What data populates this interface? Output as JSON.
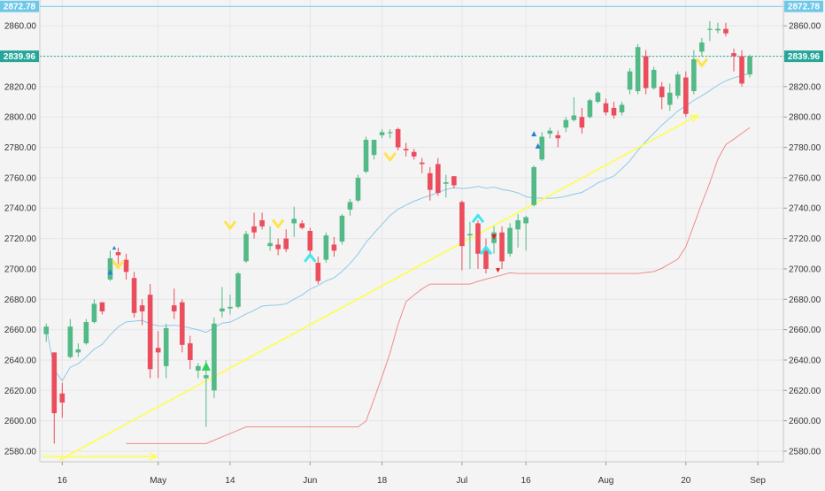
{
  "theme": {
    "background": "#f4f4f4",
    "grid": "#e6e6ea",
    "up_color": "#53b987",
    "down_color": "#eb4d5c",
    "ma_fast_color": "#8fc9e6",
    "ma_slow_color": "#f08c8c",
    "trendline_color": "#ffff40",
    "resistance_color": "#6fc8e8",
    "last_price_color": "#26a69a",
    "marker_yellow": "#ffe34d",
    "marker_cyan": "#3fe8f0",
    "marker_green": "#2fd35a",
    "marker_blue": "#2a7fd4",
    "marker_red": "#e02020"
  },
  "chart_data": {
    "type": "candlestick",
    "y_axis": {
      "ticks": [
        "2580.00",
        "2600.00",
        "2620.00",
        "2640.00",
        "2660.00",
        "2680.00",
        "2700.00",
        "2720.00",
        "2740.00",
        "2760.00",
        "2780.00",
        "2800.00",
        "2820.00",
        "2840.00",
        "2860.00"
      ],
      "range": [
        2573,
        2877
      ]
    },
    "x_axis": {
      "ticks": [
        {
          "label": "16",
          "index": 2
        },
        {
          "label": "May",
          "index": 14
        },
        {
          "label": "14",
          "index": 23
        },
        {
          "label": "Jun",
          "index": 33
        },
        {
          "label": "18",
          "index": 42
        },
        {
          "label": "Jul",
          "index": 52
        },
        {
          "label": "16",
          "index": 60
        },
        {
          "label": "Aug",
          "index": 70
        },
        {
          "label": "20",
          "index": 80
        },
        {
          "label": "Sep",
          "index": 89
        }
      ],
      "index_range": [
        -0.8,
        92.2
      ]
    },
    "price_levels": [
      {
        "name": "resistance",
        "value": 2872.78,
        "label": "2872.78"
      },
      {
        "name": "last-price",
        "value": 2839.96,
        "label": "2839.96"
      }
    ],
    "candles": [
      {
        "o": 2657,
        "h": 2664,
        "l": 2652,
        "c": 2662
      },
      {
        "o": 2645,
        "h": 2645,
        "l": 2585,
        "c": 2605
      },
      {
        "o": 2618,
        "h": 2625,
        "l": 2602,
        "c": 2612
      },
      {
        "o": 2642,
        "h": 2667,
        "l": 2641,
        "c": 2662
      },
      {
        "o": 2645,
        "h": 2651,
        "l": 2642,
        "c": 2647
      },
      {
        "o": 2651,
        "h": 2667,
        "l": 2650,
        "c": 2665
      },
      {
        "o": 2665,
        "h": 2680,
        "l": 2664,
        "c": 2677
      },
      {
        "o": 2678,
        "h": 2678,
        "l": 2670,
        "c": 2672
      },
      {
        "o": 2693,
        "h": 2712,
        "l": 2692,
        "c": 2707
      },
      {
        "o": 2711,
        "h": 2714,
        "l": 2703,
        "c": 2709
      },
      {
        "o": 2706,
        "h": 2710,
        "l": 2693,
        "c": 2698
      },
      {
        "o": 2694,
        "h": 2698,
        "l": 2668,
        "c": 2671
      },
      {
        "o": 2676,
        "h": 2680,
        "l": 2663,
        "c": 2672
      },
      {
        "o": 2683,
        "h": 2690,
        "l": 2628,
        "c": 2634
      },
      {
        "o": 2648,
        "h": 2659,
        "l": 2628,
        "c": 2645
      },
      {
        "o": 2636,
        "h": 2664,
        "l": 2628,
        "c": 2661
      },
      {
        "o": 2676,
        "h": 2687,
        "l": 2667,
        "c": 2672
      },
      {
        "o": 2678,
        "h": 2680,
        "l": 2645,
        "c": 2650
      },
      {
        "o": 2651,
        "h": 2656,
        "l": 2634,
        "c": 2640
      },
      {
        "o": 2633,
        "h": 2638,
        "l": 2628,
        "c": 2636
      },
      {
        "o": 2628,
        "h": 2640,
        "l": 2596,
        "c": 2630
      },
      {
        "o": 2620,
        "h": 2668,
        "l": 2615,
        "c": 2664
      },
      {
        "o": 2672,
        "h": 2688,
        "l": 2668,
        "c": 2674
      },
      {
        "o": 2674,
        "h": 2683,
        "l": 2670,
        "c": 2675
      },
      {
        "o": 2675,
        "h": 2698,
        "l": 2674,
        "c": 2697
      },
      {
        "o": 2705,
        "h": 2725,
        "l": 2704,
        "c": 2723
      },
      {
        "o": 2728,
        "h": 2737,
        "l": 2720,
        "c": 2724
      },
      {
        "o": 2732,
        "h": 2737,
        "l": 2726,
        "c": 2728
      },
      {
        "o": 2715,
        "h": 2728,
        "l": 2712,
        "c": 2717
      },
      {
        "o": 2716,
        "h": 2720,
        "l": 2709,
        "c": 2713
      },
      {
        "o": 2720,
        "h": 2726,
        "l": 2711,
        "c": 2713
      },
      {
        "o": 2730,
        "h": 2741,
        "l": 2721,
        "c": 2733
      },
      {
        "o": 2730,
        "h": 2732,
        "l": 2726,
        "c": 2727
      },
      {
        "o": 2725,
        "h": 2727,
        "l": 2709,
        "c": 2712
      },
      {
        "o": 2704,
        "h": 2708,
        "l": 2690,
        "c": 2692
      },
      {
        "o": 2706,
        "h": 2724,
        "l": 2704,
        "c": 2722
      },
      {
        "o": 2716,
        "h": 2721,
        "l": 2708,
        "c": 2712
      },
      {
        "o": 2718,
        "h": 2736,
        "l": 2716,
        "c": 2735
      },
      {
        "o": 2739,
        "h": 2746,
        "l": 2735,
        "c": 2744
      },
      {
        "o": 2745,
        "h": 2762,
        "l": 2744,
        "c": 2760
      },
      {
        "o": 2764,
        "h": 2787,
        "l": 2763,
        "c": 2785
      },
      {
        "o": 2775,
        "h": 2785,
        "l": 2772,
        "c": 2785
      },
      {
        "o": 2788,
        "h": 2792,
        "l": 2786,
        "c": 2790
      },
      {
        "o": 2790,
        "h": 2792,
        "l": 2786,
        "c": 2790
      },
      {
        "o": 2792,
        "h": 2793,
        "l": 2778,
        "c": 2780
      },
      {
        "o": 2779,
        "h": 2783,
        "l": 2774,
        "c": 2778
      },
      {
        "o": 2777,
        "h": 2779,
        "l": 2772,
        "c": 2774
      },
      {
        "o": 2770,
        "h": 2773,
        "l": 2763,
        "c": 2769
      },
      {
        "o": 2763,
        "h": 2767,
        "l": 2745,
        "c": 2752
      },
      {
        "o": 2769,
        "h": 2773,
        "l": 2748,
        "c": 2750
      },
      {
        "o": 2756,
        "h": 2762,
        "l": 2747,
        "c": 2757
      },
      {
        "o": 2761,
        "h": 2761,
        "l": 2753,
        "c": 2755
      },
      {
        "o": 2744,
        "h": 2745,
        "l": 2699,
        "c": 2715
      },
      {
        "o": 2722,
        "h": 2731,
        "l": 2700,
        "c": 2723
      },
      {
        "o": 2730,
        "h": 2732,
        "l": 2700,
        "c": 2710
      },
      {
        "o": 2712,
        "h": 2720,
        "l": 2697,
        "c": 2700
      },
      {
        "o": 2717,
        "h": 2728,
        "l": 2710,
        "c": 2724
      },
      {
        "o": 2724,
        "h": 2728,
        "l": 2700,
        "c": 2705
      },
      {
        "o": 2710,
        "h": 2730,
        "l": 2708,
        "c": 2727
      },
      {
        "o": 2726,
        "h": 2736,
        "l": 2714,
        "c": 2732
      },
      {
        "o": 2730,
        "h": 2735,
        "l": 2712,
        "c": 2734
      },
      {
        "o": 2742,
        "h": 2768,
        "l": 2741,
        "c": 2767
      },
      {
        "o": 2772,
        "h": 2790,
        "l": 2771,
        "c": 2787
      },
      {
        "o": 2789,
        "h": 2793,
        "l": 2786,
        "c": 2791
      },
      {
        "o": 2788,
        "h": 2791,
        "l": 2780,
        "c": 2786
      },
      {
        "o": 2793,
        "h": 2800,
        "l": 2790,
        "c": 2798
      },
      {
        "o": 2798,
        "h": 2813,
        "l": 2797,
        "c": 2801
      },
      {
        "o": 2800,
        "h": 2806,
        "l": 2789,
        "c": 2793
      },
      {
        "o": 2800,
        "h": 2812,
        "l": 2799,
        "c": 2811
      },
      {
        "o": 2810,
        "h": 2817,
        "l": 2809,
        "c": 2816
      },
      {
        "o": 2809,
        "h": 2812,
        "l": 2801,
        "c": 2803
      },
      {
        "o": 2806,
        "h": 2810,
        "l": 2799,
        "c": 2801
      },
      {
        "o": 2803,
        "h": 2810,
        "l": 2801,
        "c": 2808
      },
      {
        "o": 2818,
        "h": 2832,
        "l": 2815,
        "c": 2830
      },
      {
        "o": 2817,
        "h": 2848,
        "l": 2815,
        "c": 2846
      },
      {
        "o": 2840,
        "h": 2844,
        "l": 2815,
        "c": 2819
      },
      {
        "o": 2819,
        "h": 2833,
        "l": 2818,
        "c": 2831
      },
      {
        "o": 2820,
        "h": 2823,
        "l": 2805,
        "c": 2813
      },
      {
        "o": 2808,
        "h": 2822,
        "l": 2804,
        "c": 2816
      },
      {
        "o": 2814,
        "h": 2830,
        "l": 2812,
        "c": 2828
      },
      {
        "o": 2826,
        "h": 2830,
        "l": 2800,
        "c": 2802
      },
      {
        "o": 2817,
        "h": 2844,
        "l": 2815,
        "c": 2838
      },
      {
        "o": 2843,
        "h": 2852,
        "l": 2840,
        "c": 2849
      },
      {
        "o": 2858,
        "h": 2863,
        "l": 2850,
        "c": 2858
      },
      {
        "o": 2857,
        "h": 2862,
        "l": 2855,
        "c": 2858
      },
      {
        "o": 2858,
        "h": 2862,
        "l": 2853,
        "c": 2855
      },
      {
        "o": 2842,
        "h": 2845,
        "l": 2830,
        "c": 2840
      },
      {
        "o": 2840,
        "h": 2844,
        "l": 2820,
        "c": 2822
      },
      {
        "o": 2828,
        "h": 2841,
        "l": 2826,
        "c": 2840
      }
    ]
  }
}
